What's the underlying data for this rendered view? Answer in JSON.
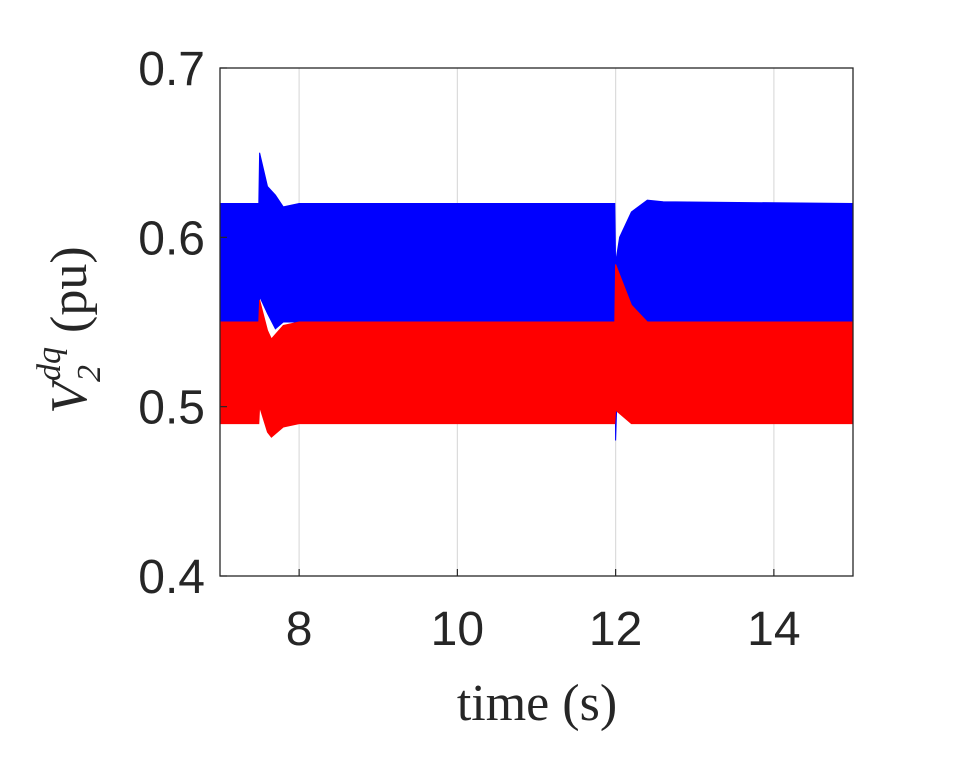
{
  "chart_data": {
    "type": "band",
    "xlabel": "time (s)",
    "ylabel": {
      "base": "V",
      "sub": "2",
      "sup": "dq",
      "rest": "(pu)"
    },
    "xlim": [
      7,
      15
    ],
    "xticks": [
      8,
      10,
      12,
      14
    ],
    "ylim": [
      0.4,
      0.7
    ],
    "yticks": [
      0.4,
      0.5,
      0.6,
      0.7
    ],
    "grid": "x",
    "series": [
      {
        "color": "#0000ff",
        "x": [
          7,
          7.49,
          7.5,
          7.6,
          7.7,
          7.8,
          8,
          11.99,
          12,
          12.05,
          12.2,
          12.4,
          12.6,
          15
        ],
        "max": [
          0.62,
          0.62,
          0.65,
          0.63,
          0.625,
          0.618,
          0.62,
          0.62,
          0.585,
          0.6,
          0.615,
          0.622,
          0.621,
          0.62
        ],
        "min": [
          0.55,
          0.55,
          0.565,
          0.555,
          0.546,
          0.55,
          0.55,
          0.55,
          0.48,
          0.55,
          0.55,
          0.55,
          0.55,
          0.55
        ]
      },
      {
        "color": "#ff0000",
        "x": [
          7,
          7.49,
          7.5,
          7.6,
          7.65,
          7.8,
          8,
          11.99,
          12,
          12.2,
          12.4,
          15
        ],
        "max": [
          0.55,
          0.55,
          0.563,
          0.545,
          0.54,
          0.548,
          0.55,
          0.55,
          0.584,
          0.56,
          0.55,
          0.55
        ],
        "min": [
          0.49,
          0.49,
          0.5,
          0.485,
          0.482,
          0.488,
          0.49,
          0.49,
          0.498,
          0.49,
          0.49,
          0.49
        ]
      }
    ]
  }
}
